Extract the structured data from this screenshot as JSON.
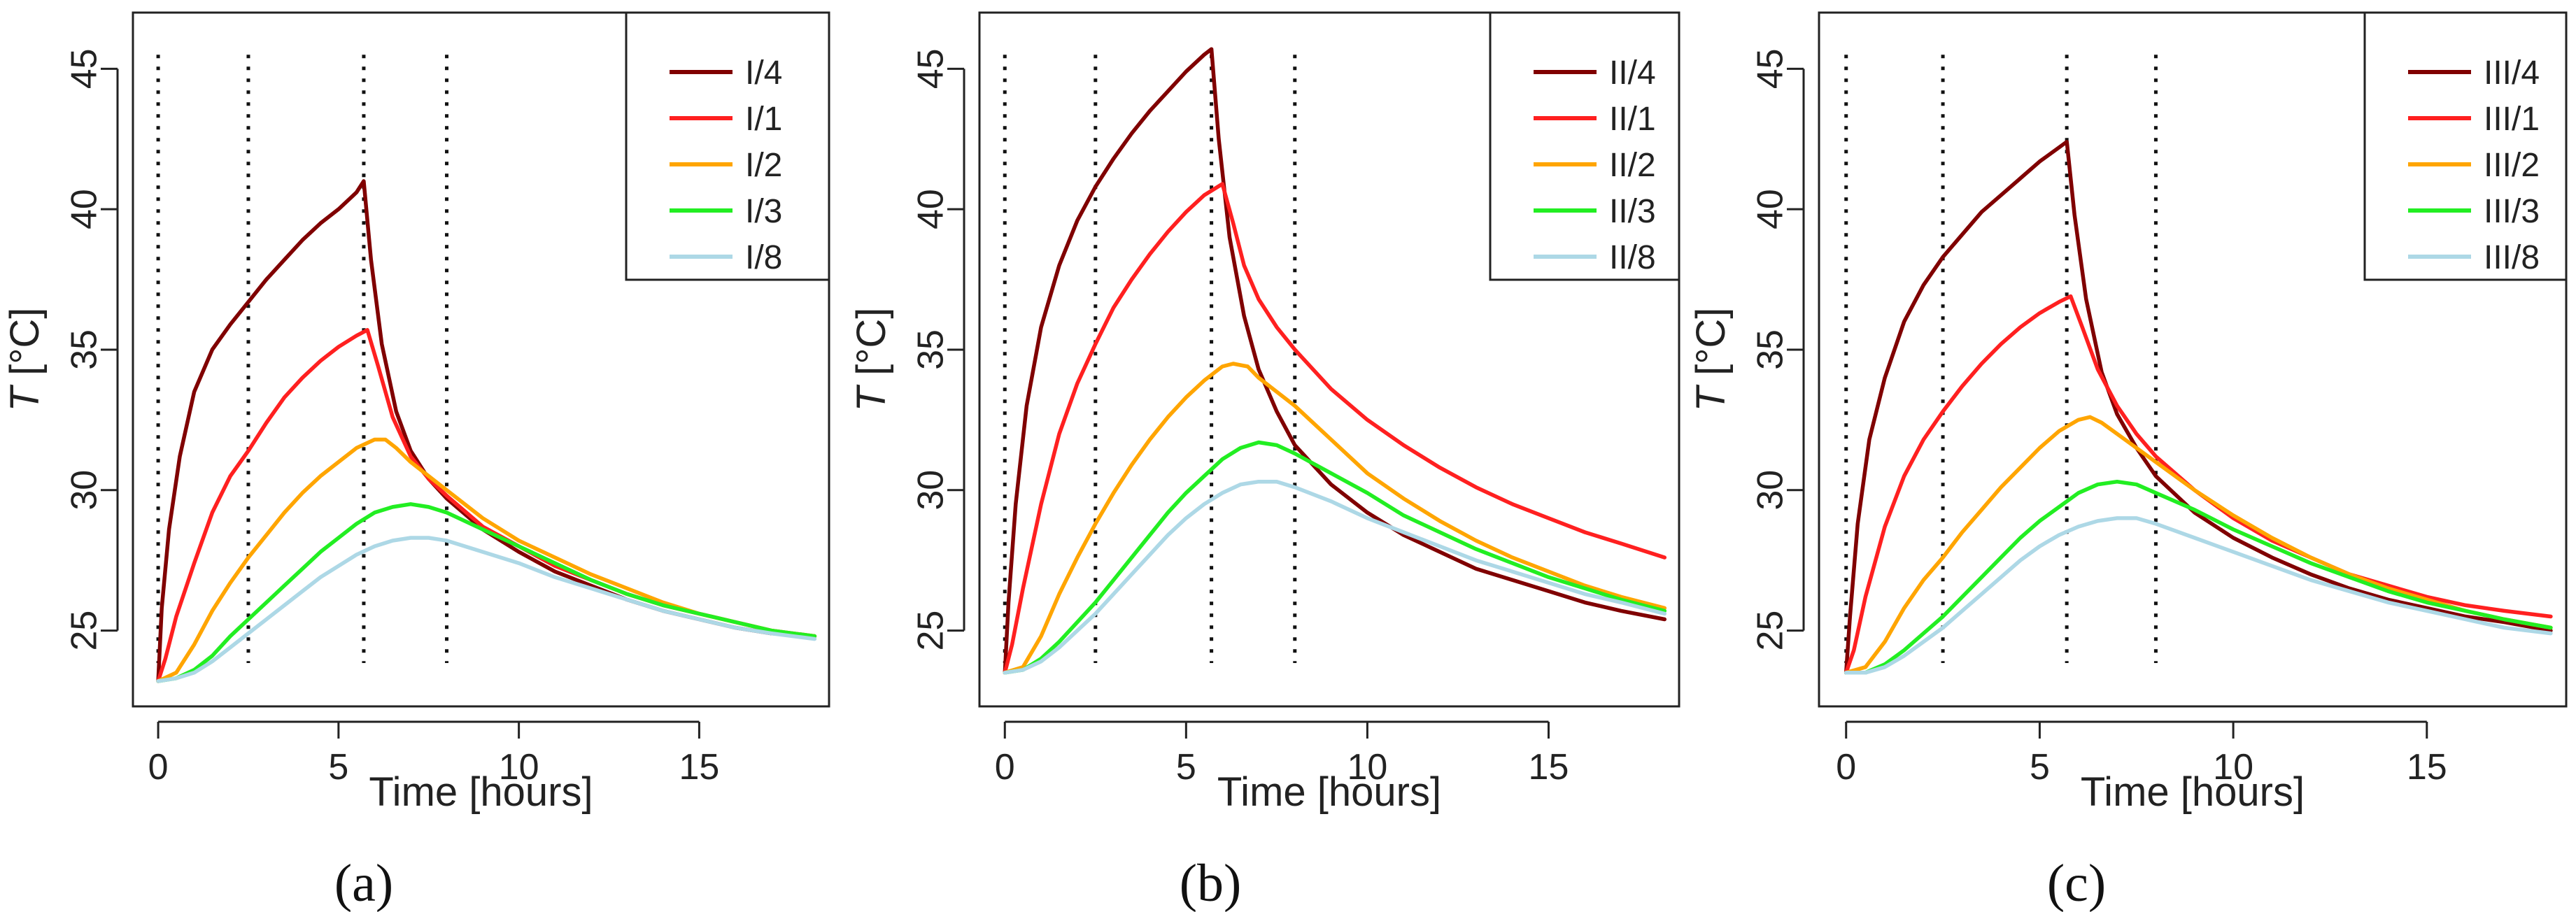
{
  "figure": {
    "panels": [
      "(a)",
      "(b)",
      "(c)"
    ]
  },
  "colors": {
    "dark_red": "#800000",
    "red": "#ff2020",
    "orange": "#ffa500",
    "green": "#22ee22",
    "light_blue": "#add8e6",
    "axis": "#222222"
  },
  "chart_data": [
    {
      "type": "line",
      "panel_label": "(a)",
      "xlabel": "Time  [hours]",
      "ylabel_var": "T",
      "ylabel_unit": " [°C]",
      "xlim": [
        -0.7,
        18.6
      ],
      "ylim": [
        22.3,
        47.0
      ],
      "xticks": [
        0,
        5,
        10,
        15
      ],
      "yticks": [
        25,
        30,
        35,
        40,
        45
      ],
      "vlines": [
        0,
        2.5,
        5.7,
        8.0
      ],
      "legend_position": "top-right",
      "series": [
        {
          "name": "I/4",
          "color": "dark_red",
          "x": [
            0,
            0.1,
            0.3,
            0.6,
            1,
            1.5,
            2,
            2.5,
            3,
            3.5,
            4,
            4.5,
            5,
            5.5,
            5.7,
            5.9,
            6.2,
            6.6,
            7,
            7.5,
            8,
            9,
            10,
            11,
            12,
            13,
            14,
            15,
            16,
            17,
            18.2
          ],
          "y": [
            23.2,
            25.8,
            28.6,
            31.2,
            33.5,
            35.0,
            35.9,
            36.7,
            37.5,
            38.2,
            38.9,
            39.5,
            40.0,
            40.6,
            41.0,
            38.2,
            35.2,
            32.8,
            31.4,
            30.4,
            29.7,
            28.6,
            27.8,
            27.1,
            26.6,
            26.1,
            25.7,
            25.4,
            25.1,
            24.9,
            24.8
          ]
        },
        {
          "name": "I/1",
          "color": "red",
          "x": [
            0,
            0.2,
            0.5,
            1,
            1.5,
            2,
            2.5,
            3,
            3.5,
            4,
            4.5,
            5,
            5.5,
            5.8,
            6.1,
            6.5,
            7,
            7.5,
            8,
            9,
            10,
            11,
            12,
            13,
            14,
            15,
            16,
            17,
            18.2
          ],
          "y": [
            23.2,
            24.0,
            25.5,
            27.4,
            29.2,
            30.5,
            31.4,
            32.4,
            33.3,
            34.0,
            34.6,
            35.1,
            35.5,
            35.7,
            34.4,
            32.6,
            31.2,
            30.4,
            29.8,
            28.7,
            28.0,
            27.3,
            26.8,
            26.3,
            25.9,
            25.6,
            25.3,
            25.0,
            24.8
          ]
        },
        {
          "name": "I/2",
          "color": "orange",
          "x": [
            0,
            0.5,
            1,
            1.5,
            2,
            2.5,
            3,
            3.5,
            4,
            4.5,
            5,
            5.5,
            6,
            6.3,
            6.6,
            7,
            7.5,
            8,
            9,
            10,
            11,
            12,
            13,
            14,
            15,
            16,
            17,
            18.2
          ],
          "y": [
            23.2,
            23.5,
            24.5,
            25.7,
            26.7,
            27.6,
            28.4,
            29.2,
            29.9,
            30.5,
            31.0,
            31.5,
            31.8,
            31.8,
            31.5,
            31.0,
            30.5,
            30.0,
            29.0,
            28.2,
            27.6,
            27.0,
            26.5,
            26.0,
            25.6,
            25.3,
            25.0,
            24.8
          ]
        },
        {
          "name": "I/3",
          "color": "green",
          "x": [
            0,
            0.5,
            1,
            1.5,
            2,
            2.5,
            3,
            3.5,
            4,
            4.5,
            5,
            5.5,
            6,
            6.5,
            7,
            7.5,
            8,
            9,
            10,
            11,
            12,
            13,
            14,
            15,
            16,
            17,
            18.2
          ],
          "y": [
            23.2,
            23.3,
            23.6,
            24.1,
            24.8,
            25.4,
            26.0,
            26.6,
            27.2,
            27.8,
            28.3,
            28.8,
            29.2,
            29.4,
            29.5,
            29.4,
            29.2,
            28.6,
            28.0,
            27.4,
            26.8,
            26.3,
            25.9,
            25.6,
            25.3,
            25.0,
            24.8
          ]
        },
        {
          "name": "I/8",
          "color": "light_blue",
          "x": [
            0,
            0.5,
            1,
            1.5,
            2,
            2.5,
            3,
            3.5,
            4,
            4.5,
            5,
            5.5,
            6,
            6.5,
            7,
            7.5,
            8,
            9,
            10,
            11,
            12,
            13,
            14,
            15,
            16,
            17,
            18.2
          ],
          "y": [
            23.2,
            23.3,
            23.5,
            23.9,
            24.4,
            24.9,
            25.4,
            25.9,
            26.4,
            26.9,
            27.3,
            27.7,
            28.0,
            28.2,
            28.3,
            28.3,
            28.2,
            27.8,
            27.4,
            26.9,
            26.5,
            26.1,
            25.7,
            25.4,
            25.1,
            24.9,
            24.7
          ]
        }
      ]
    },
    {
      "type": "line",
      "panel_label": "(b)",
      "xlabel": "Time  [hours]",
      "ylabel_var": "T",
      "ylabel_unit": " [°C]",
      "xlim": [
        -0.7,
        18.6
      ],
      "ylim": [
        22.3,
        47.0
      ],
      "xticks": [
        0,
        5,
        10,
        15
      ],
      "yticks": [
        25,
        30,
        35,
        40,
        45
      ],
      "vlines": [
        0,
        2.5,
        5.7,
        8.0
      ],
      "legend_position": "top-right",
      "series": [
        {
          "name": "II/4",
          "color": "dark_red",
          "x": [
            0,
            0.1,
            0.3,
            0.6,
            1,
            1.5,
            2,
            2.5,
            3,
            3.5,
            4,
            4.5,
            5,
            5.5,
            5.7,
            5.9,
            6.2,
            6.6,
            7,
            7.5,
            8,
            9,
            10,
            11,
            12,
            13,
            14,
            15,
            16,
            17,
            18.2
          ],
          "y": [
            23.5,
            26.0,
            29.5,
            33.0,
            35.8,
            38.0,
            39.6,
            40.8,
            41.8,
            42.7,
            43.5,
            44.2,
            44.9,
            45.5,
            45.7,
            42.5,
            39.0,
            36.2,
            34.3,
            32.8,
            31.6,
            30.2,
            29.2,
            28.4,
            27.8,
            27.2,
            26.8,
            26.4,
            26.0,
            25.7,
            25.4
          ]
        },
        {
          "name": "II/1",
          "color": "red",
          "x": [
            0,
            0.2,
            0.5,
            1,
            1.5,
            2,
            2.5,
            3,
            3.5,
            4,
            4.5,
            5,
            5.5,
            6,
            6.3,
            6.6,
            7,
            7.5,
            8,
            9,
            10,
            11,
            12,
            13,
            14,
            15,
            16,
            17,
            18.2
          ],
          "y": [
            23.5,
            24.5,
            26.5,
            29.5,
            32.0,
            33.8,
            35.2,
            36.5,
            37.5,
            38.4,
            39.2,
            39.9,
            40.5,
            40.9,
            39.5,
            38.0,
            36.8,
            35.8,
            35.0,
            33.6,
            32.5,
            31.6,
            30.8,
            30.1,
            29.5,
            29.0,
            28.5,
            28.1,
            27.6
          ]
        },
        {
          "name": "II/2",
          "color": "orange",
          "x": [
            0,
            0.5,
            1,
            1.5,
            2,
            2.5,
            3,
            3.5,
            4,
            4.5,
            5,
            5.5,
            6,
            6.3,
            6.7,
            7,
            7.5,
            8,
            9,
            10,
            11,
            12,
            13,
            14,
            15,
            16,
            17,
            18.2
          ],
          "y": [
            23.5,
            23.7,
            24.8,
            26.3,
            27.6,
            28.8,
            29.9,
            30.9,
            31.8,
            32.6,
            33.3,
            33.9,
            34.4,
            34.5,
            34.4,
            34.0,
            33.5,
            33.0,
            31.8,
            30.6,
            29.7,
            28.9,
            28.2,
            27.6,
            27.1,
            26.6,
            26.2,
            25.8
          ]
        },
        {
          "name": "II/3",
          "color": "green",
          "x": [
            0,
            0.5,
            1,
            1.5,
            2,
            2.5,
            3,
            3.5,
            4,
            4.5,
            5,
            5.5,
            6,
            6.5,
            7,
            7.5,
            8,
            9,
            10,
            11,
            12,
            13,
            14,
            15,
            16,
            17,
            18.2
          ],
          "y": [
            23.5,
            23.6,
            24.0,
            24.6,
            25.3,
            26.0,
            26.8,
            27.6,
            28.4,
            29.2,
            29.9,
            30.5,
            31.1,
            31.5,
            31.7,
            31.6,
            31.3,
            30.6,
            29.9,
            29.1,
            28.5,
            27.9,
            27.4,
            26.9,
            26.5,
            26.1,
            25.7
          ]
        },
        {
          "name": "II/8",
          "color": "light_blue",
          "x": [
            0,
            0.5,
            1,
            1.5,
            2,
            2.5,
            3,
            3.5,
            4,
            4.5,
            5,
            5.5,
            6,
            6.5,
            7,
            7.5,
            8,
            9,
            10,
            11,
            12,
            13,
            14,
            15,
            16,
            17,
            18.2
          ],
          "y": [
            23.5,
            23.6,
            23.9,
            24.4,
            25.0,
            25.6,
            26.3,
            27.0,
            27.7,
            28.4,
            29.0,
            29.5,
            29.9,
            30.2,
            30.3,
            30.3,
            30.1,
            29.6,
            29.0,
            28.5,
            28.0,
            27.5,
            27.1,
            26.7,
            26.3,
            26.0,
            25.6
          ]
        }
      ]
    },
    {
      "type": "line",
      "panel_label": "(c)",
      "xlabel": "Time  [hours]",
      "ylabel_var": "T",
      "ylabel_unit": " [°C]",
      "xlim": [
        -0.7,
        18.6
      ],
      "ylim": [
        22.3,
        47.0
      ],
      "xticks": [
        0,
        5,
        10,
        15
      ],
      "yticks": [
        25,
        30,
        35,
        40,
        45
      ],
      "vlines": [
        0,
        2.5,
        5.7,
        8.0
      ],
      "legend_position": "top-right",
      "series": [
        {
          "name": "III/4",
          "color": "dark_red",
          "x": [
            0,
            0.1,
            0.3,
            0.6,
            1,
            1.5,
            2,
            2.5,
            3,
            3.5,
            4,
            4.5,
            5,
            5.5,
            5.7,
            5.9,
            6.2,
            6.6,
            7,
            7.5,
            8,
            9,
            10,
            11,
            12,
            13,
            14,
            15,
            16,
            17,
            18.2
          ],
          "y": [
            23.5,
            25.5,
            28.8,
            31.8,
            34.0,
            36.0,
            37.3,
            38.3,
            39.1,
            39.9,
            40.5,
            41.1,
            41.7,
            42.2,
            42.4,
            39.8,
            36.8,
            34.2,
            32.7,
            31.5,
            30.5,
            29.2,
            28.3,
            27.6,
            27.0,
            26.5,
            26.1,
            25.8,
            25.5,
            25.3,
            25.0
          ]
        },
        {
          "name": "III/1",
          "color": "red",
          "x": [
            0,
            0.2,
            0.5,
            1,
            1.5,
            2,
            2.5,
            3,
            3.5,
            4,
            4.5,
            5,
            5.5,
            5.8,
            6.1,
            6.5,
            7,
            7.5,
            8,
            9,
            10,
            11,
            12,
            13,
            14,
            15,
            16,
            17,
            18.2
          ],
          "y": [
            23.5,
            24.3,
            26.2,
            28.7,
            30.5,
            31.8,
            32.8,
            33.7,
            34.5,
            35.2,
            35.8,
            36.3,
            36.7,
            36.9,
            35.8,
            34.3,
            33.0,
            32.0,
            31.2,
            30.0,
            29.0,
            28.2,
            27.6,
            27.0,
            26.6,
            26.2,
            25.9,
            25.7,
            25.5
          ]
        },
        {
          "name": "III/2",
          "color": "orange",
          "x": [
            0,
            0.5,
            1,
            1.5,
            2,
            2.5,
            3,
            3.5,
            4,
            4.5,
            5,
            5.5,
            6,
            6.3,
            6.6,
            7,
            7.5,
            8,
            9,
            10,
            11,
            12,
            13,
            14,
            15,
            16,
            17,
            18.2
          ],
          "y": [
            23.5,
            23.7,
            24.6,
            25.8,
            26.8,
            27.6,
            28.5,
            29.3,
            30.1,
            30.8,
            31.5,
            32.1,
            32.5,
            32.6,
            32.4,
            32.0,
            31.5,
            31.0,
            30.0,
            29.1,
            28.3,
            27.6,
            27.0,
            26.5,
            26.1,
            25.7,
            25.4,
            25.1
          ]
        },
        {
          "name": "III/3",
          "color": "green",
          "x": [
            0,
            0.5,
            1,
            1.5,
            2,
            2.5,
            3,
            3.5,
            4,
            4.5,
            5,
            5.5,
            6,
            6.5,
            7,
            7.5,
            8,
            9,
            10,
            11,
            12,
            13,
            14,
            15,
            16,
            17,
            18.2
          ],
          "y": [
            23.5,
            23.5,
            23.8,
            24.3,
            24.9,
            25.5,
            26.2,
            26.9,
            27.6,
            28.3,
            28.9,
            29.4,
            29.9,
            30.2,
            30.3,
            30.2,
            29.9,
            29.3,
            28.6,
            28.0,
            27.4,
            26.9,
            26.4,
            26.0,
            25.7,
            25.4,
            25.1
          ]
        },
        {
          "name": "III/8",
          "color": "light_blue",
          "x": [
            0,
            0.5,
            1,
            1.5,
            2,
            2.5,
            3,
            3.5,
            4,
            4.5,
            5,
            5.5,
            6,
            6.5,
            7,
            7.5,
            8,
            9,
            10,
            11,
            12,
            13,
            14,
            15,
            16,
            17,
            18.2
          ],
          "y": [
            23.5,
            23.5,
            23.7,
            24.1,
            24.6,
            25.1,
            25.7,
            26.3,
            26.9,
            27.5,
            28.0,
            28.4,
            28.7,
            28.9,
            29.0,
            29.0,
            28.8,
            28.3,
            27.8,
            27.3,
            26.8,
            26.4,
            26.0,
            25.7,
            25.4,
            25.1,
            24.9
          ]
        }
      ]
    }
  ]
}
